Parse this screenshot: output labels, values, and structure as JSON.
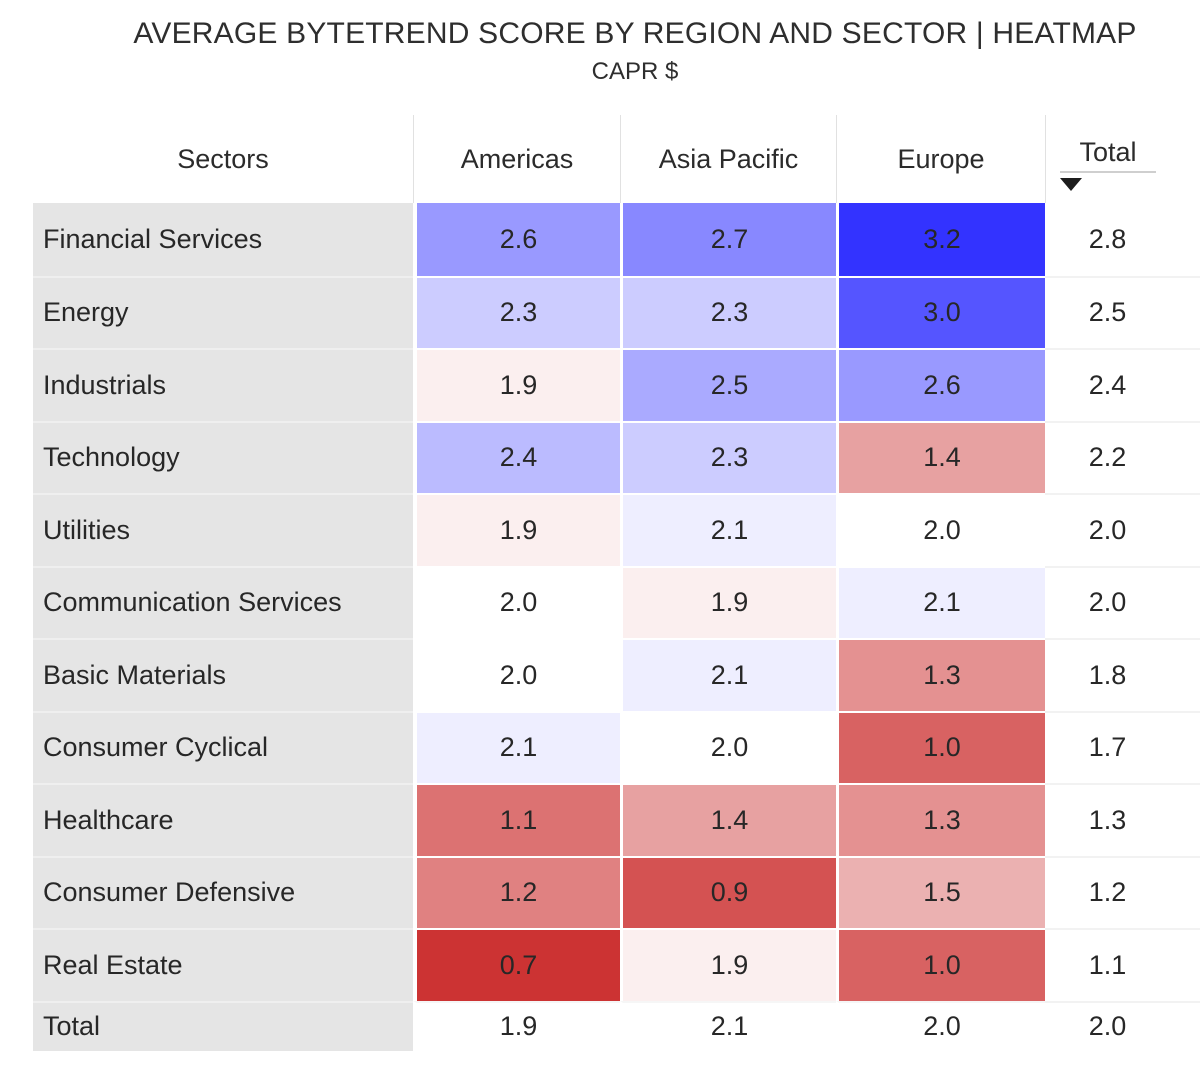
{
  "header": {
    "columns": [
      "Sectors",
      "Americas",
      "Asia Pacific",
      "Europe",
      "Total"
    ],
    "sort": {
      "column": "Total",
      "direction": "descending"
    }
  },
  "total_row_label": "Total",
  "colors": {
    "sector_panel": "#e5e5e5",
    "heat_min": "#cc3333",
    "heat_center": "#ffffff",
    "heat_max": "#3333ff",
    "text": "#272727"
  },
  "chart_data": {
    "type": "heatmap",
    "title": "AVERAGE BYTETREND SCORE BY REGION AND SECTOR | HEATMAP",
    "subtitle": "CAPR $",
    "x_categories": [
      "Americas",
      "Asia Pacific",
      "Europe"
    ],
    "y_categories": [
      "Financial Services",
      "Energy",
      "Industrials",
      "Technology",
      "Utilities",
      "Communication Services",
      "Basic Materials",
      "Consumer Cyclical",
      "Healthcare",
      "Consumer Defensive",
      "Real Estate"
    ],
    "values": [
      [
        2.6,
        2.7,
        3.2
      ],
      [
        2.3,
        2.3,
        3.0
      ],
      [
        1.9,
        2.5,
        2.6
      ],
      [
        2.4,
        2.3,
        1.4
      ],
      [
        1.9,
        2.1,
        2.0
      ],
      [
        2.0,
        1.9,
        2.1
      ],
      [
        2.0,
        2.1,
        1.3
      ],
      [
        2.1,
        2.0,
        1.0
      ],
      [
        1.1,
        1.4,
        1.3
      ],
      [
        1.2,
        0.9,
        1.5
      ],
      [
        0.7,
        1.9,
        1.0
      ]
    ],
    "row_totals": [
      2.8,
      2.5,
      2.4,
      2.2,
      2.0,
      2.0,
      1.8,
      1.7,
      1.3,
      1.2,
      1.1
    ],
    "column_totals": [
      1.9,
      2.1,
      2.0
    ],
    "grand_total": 2.0,
    "value_format": "0.0",
    "color_scale": {
      "min": 0.7,
      "center": 2.0,
      "max": 3.2,
      "min_color": "#cc3333",
      "center_color": "#ffffff",
      "max_color": "#3333ff"
    },
    "sorted_by": "Total descending",
    "legend": "off",
    "grid": "white cell separators"
  }
}
